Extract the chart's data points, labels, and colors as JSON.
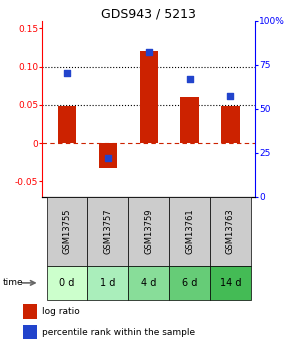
{
  "title": "GDS943 / 5213",
  "categories": [
    "GSM13755",
    "GSM13757",
    "GSM13759",
    "GSM13761",
    "GSM13763"
  ],
  "time_labels": [
    "0 d",
    "1 d",
    "4 d",
    "6 d",
    "14 d"
  ],
  "log_ratios": [
    0.048,
    -0.033,
    0.12,
    0.06,
    0.049
  ],
  "percentile_ranks": [
    70,
    22,
    82,
    67,
    57
  ],
  "bar_color": "#cc2200",
  "dot_color": "#2244cc",
  "ylim_left": [
    -0.07,
    0.16
  ],
  "ylim_right": [
    0,
    100
  ],
  "yticks_left": [
    -0.05,
    0,
    0.05,
    0.1,
    0.15
  ],
  "ytick_labels_left": [
    "-0.05",
    "0",
    "0.05",
    "0.10",
    "0.15"
  ],
  "yticks_right": [
    0,
    25,
    50,
    75,
    100
  ],
  "ytick_labels_right": [
    "0",
    "25",
    "50",
    "75",
    "100%"
  ],
  "hlines": [
    0.05,
    0.1
  ],
  "zero_line": 0,
  "gsm_bg_color": "#cccccc",
  "time_bg_colors": [
    "#ccffcc",
    "#aaeebb",
    "#88dd99",
    "#66cc77",
    "#44bb55"
  ],
  "legend_labels": [
    "log ratio",
    "percentile rank within the sample"
  ],
  "bar_width": 0.45,
  "dot_size": 22
}
